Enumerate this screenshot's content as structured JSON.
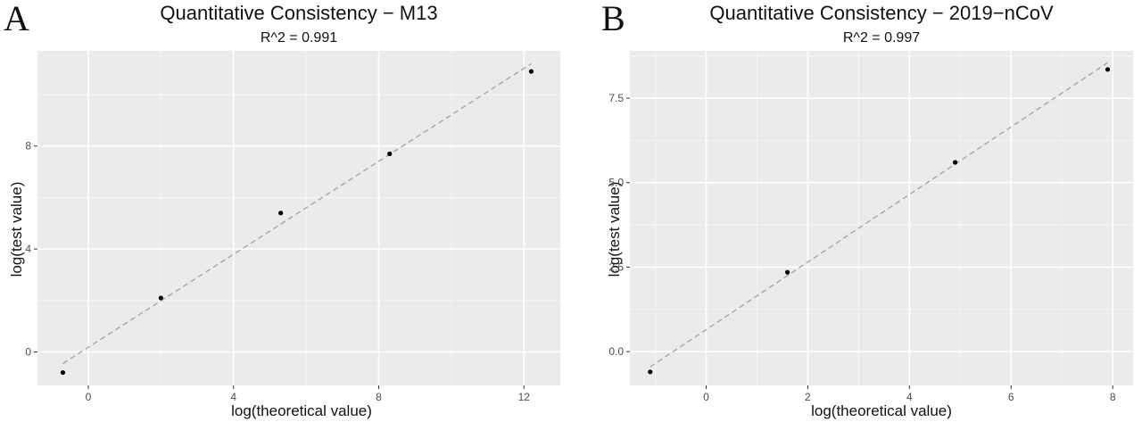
{
  "chart_data": [
    {
      "type": "scatter",
      "panel_label": "A",
      "title": "Quantitative Consistency − M13",
      "subtitle": "R^2 = 0.991",
      "xlabel": "log(theoretical value)",
      "ylabel": "log(test value)",
      "xlim": [
        -1.4,
        13.0
      ],
      "ylim": [
        -1.3,
        11.7
      ],
      "x_ticks": [
        0,
        4,
        8,
        12
      ],
      "x_tick_labels": [
        "0",
        "4",
        "8",
        "12"
      ],
      "y_ticks": [
        0,
        4,
        8
      ],
      "y_tick_labels": [
        "0",
        "4",
        "8"
      ],
      "grid": true,
      "background": "#ebebeb",
      "point_color": "#000000",
      "fit_line_color": "#a6a6a6",
      "points": [
        {
          "x": -0.7,
          "y": -0.8
        },
        {
          "x": 2.0,
          "y": 2.1
        },
        {
          "x": 5.3,
          "y": 5.4
        },
        {
          "x": 8.3,
          "y": 7.7
        },
        {
          "x": 12.2,
          "y": 10.9
        }
      ],
      "fit_line": {
        "x": [
          -0.7,
          12.2
        ],
        "y": [
          -0.45,
          11.2
        ]
      }
    },
    {
      "type": "scatter",
      "panel_label": "B",
      "title": "Quantitative Consistency − 2019−nCoV",
      "subtitle": "R^2 = 0.997",
      "xlabel": "log(theoretical value)",
      "ylabel": "log(test value)",
      "xlim": [
        -1.5,
        8.4
      ],
      "ylim": [
        -1.0,
        8.9
      ],
      "x_ticks": [
        0,
        2,
        4,
        6,
        8
      ],
      "x_tick_labels": [
        "0",
        "2",
        "4",
        "6",
        "8"
      ],
      "y_ticks": [
        0,
        2.5,
        5,
        7.5
      ],
      "y_tick_labels": [
        "0.0",
        "2.5",
        "5.0",
        "7.5"
      ],
      "grid": true,
      "background": "#ebebeb",
      "point_color": "#000000",
      "fit_line_color": "#a6a6a6",
      "points": [
        {
          "x": -1.1,
          "y": -0.6
        },
        {
          "x": 1.6,
          "y": 2.35
        },
        {
          "x": 4.9,
          "y": 5.6
        },
        {
          "x": 7.9,
          "y": 8.35
        }
      ],
      "fit_line": {
        "x": [
          -1.1,
          7.9
        ],
        "y": [
          -0.45,
          8.55
        ]
      }
    }
  ]
}
